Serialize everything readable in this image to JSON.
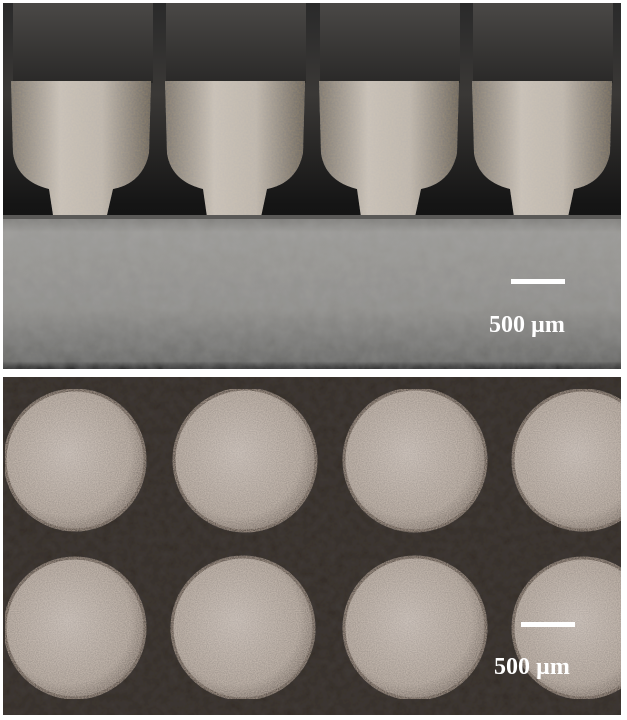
{
  "top_panel": {
    "scale_label": "500 µm",
    "pillar_count": 4
  },
  "bottom_panel": {
    "scale_label": "500 µm",
    "disc_rows": 2,
    "disc_cols": 4
  },
  "colors": {
    "top_background": "#121212",
    "substrate": "#8d8d8b",
    "metal": "#b4ada6",
    "bottom_background": "#3e3834",
    "disc": "#a89e98"
  }
}
